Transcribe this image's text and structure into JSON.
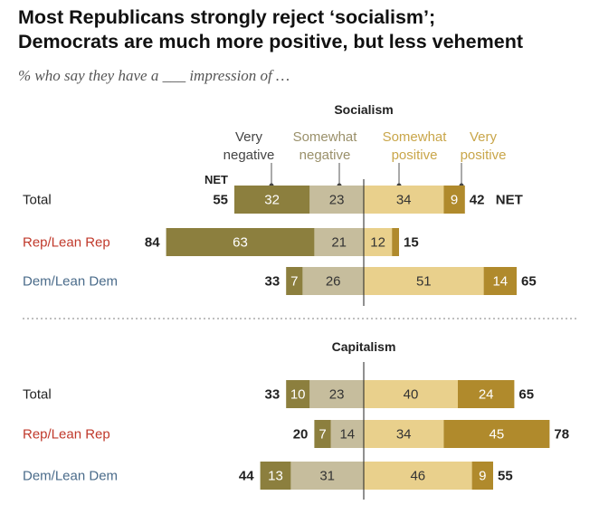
{
  "title_line1": "Most Republicans strongly reject ‘socialism’;",
  "title_line2": "Democrats are much more positive, but less vehement",
  "subtitle": "% who say they have a ___ impression of …",
  "legend": {
    "very_negative": [
      "Very",
      "negative"
    ],
    "somewhat_negative": [
      "Somewhat",
      "negative"
    ],
    "somewhat_positive": [
      "Somewhat",
      "positive"
    ],
    "very_positive": [
      "Very",
      "positive"
    ]
  },
  "net_label": "NET",
  "colors": {
    "very_negative": "#8c7f3e",
    "somewhat_negative": "#c6bd9d",
    "somewhat_positive": "#e9d08c",
    "very_positive": "#b08a2c",
    "rep_label": "#c0392b",
    "dem_label": "#4a6b8a"
  },
  "chart_data": [
    {
      "type": "bar",
      "title": "Socialism",
      "categories": [
        "Total",
        "Rep/Lean Rep",
        "Dem/Lean Dem"
      ],
      "series": [
        {
          "name": "Very negative",
          "values": [
            32,
            63,
            7
          ]
        },
        {
          "name": "Somewhat negative",
          "values": [
            23,
            21,
            26
          ]
        },
        {
          "name": "Somewhat positive",
          "values": [
            34,
            12,
            51
          ]
        },
        {
          "name": "Very positive",
          "values": [
            9,
            3,
            14
          ]
        }
      ],
      "net_negative": [
        55,
        84,
        33
      ],
      "net_positive": [
        42,
        15,
        65
      ]
    },
    {
      "type": "bar",
      "title": "Capitalism",
      "categories": [
        "Total",
        "Rep/Lean Rep",
        "Dem/Lean Dem"
      ],
      "series": [
        {
          "name": "Very negative",
          "values": [
            10,
            7,
            13
          ]
        },
        {
          "name": "Somewhat negative",
          "values": [
            23,
            14,
            31
          ]
        },
        {
          "name": "Somewhat positive",
          "values": [
            40,
            34,
            46
          ]
        },
        {
          "name": "Very positive",
          "values": [
            24,
            45,
            9
          ]
        }
      ],
      "net_negative": [
        33,
        20,
        44
      ],
      "net_positive": [
        65,
        78,
        55
      ]
    }
  ]
}
